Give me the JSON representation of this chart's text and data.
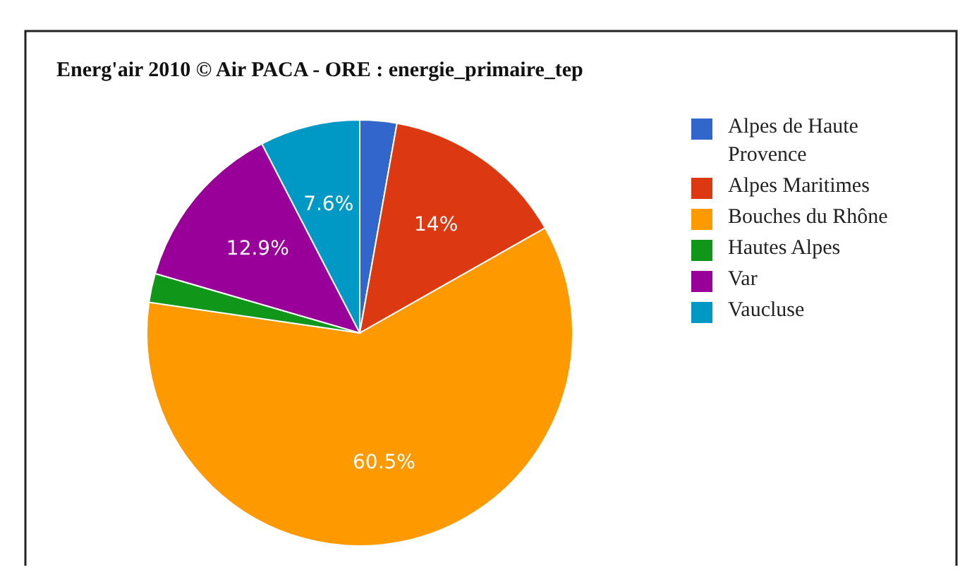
{
  "chart_data": {
    "type": "pie",
    "title": "Energ'air 2010 © Air PACA - ORE : energie_primaire_tep",
    "categories": [
      "Alpes de Haute Provence",
      "Alpes Maritimes",
      "Bouches du Rhône",
      "Hautes Alpes",
      "Var",
      "Vaucluse"
    ],
    "values": [
      2.8,
      14,
      60.5,
      2.2,
      12.9,
      7.6
    ],
    "colors": [
      "#3366cc",
      "#dc3912",
      "#ff9900",
      "#109618",
      "#990099",
      "#0099c6"
    ],
    "value_labels": [
      null,
      "14%",
      "60.5%",
      null,
      "12.9%",
      "7.6%"
    ],
    "legend": "right"
  }
}
